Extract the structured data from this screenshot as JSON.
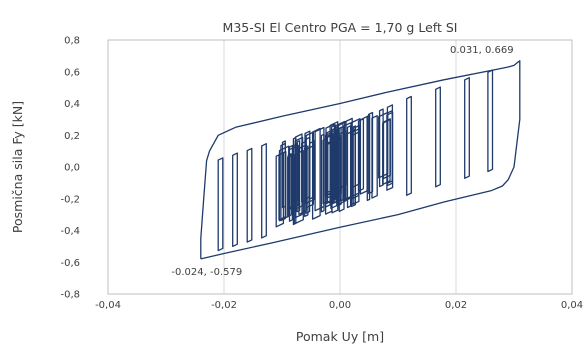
{
  "chart_data": {
    "type": "line",
    "title": "M35-SI El Centro PGA = 1,70 g Left SI",
    "xlabel": "Pomak Uy [m]",
    "ylabel": "Posmična sila Fy [kN]",
    "xlim": [
      -0.04,
      0.04
    ],
    "ylim": [
      -0.8,
      0.8
    ],
    "x_ticks": [
      "-0,04",
      "-0,02",
      "0,00",
      "0,02",
      "0,04"
    ],
    "y_ticks": [
      "0,8",
      "0,6",
      "0,4",
      "0,2",
      "0,0",
      "-0,2",
      "-0,4",
      "-0,6",
      "-0,8"
    ],
    "grid": "vertical",
    "series_color": "#1f3a6b",
    "series": [
      {
        "name": "",
        "x": [
          -0.024,
          -0.02,
          -0.012,
          0.0,
          0.01,
          0.018,
          0.026,
          0.028,
          0.029,
          0.03,
          0.031,
          0.031,
          0.0305,
          0.03,
          0.029,
          0.027,
          0.018,
          0.008,
          0.0,
          -0.01,
          -0.018,
          -0.021,
          -0.0225,
          -0.023,
          -0.0235,
          -0.024,
          -0.024
        ],
        "y": [
          -0.579,
          -0.545,
          -0.48,
          -0.38,
          -0.3,
          -0.22,
          -0.15,
          -0.12,
          -0.08,
          0.0,
          0.3,
          0.669,
          0.655,
          0.64,
          0.63,
          0.615,
          0.55,
          0.47,
          0.4,
          0.32,
          0.25,
          0.2,
          0.1,
          0.04,
          -0.2,
          -0.45,
          -0.579
        ]
      }
    ],
    "annotations": [
      {
        "text": "0.031, 0.669",
        "x": 0.031,
        "y": 0.669
      },
      {
        "text": "-0.024, -0.579",
        "x": -0.024,
        "y": -0.579
      }
    ]
  }
}
